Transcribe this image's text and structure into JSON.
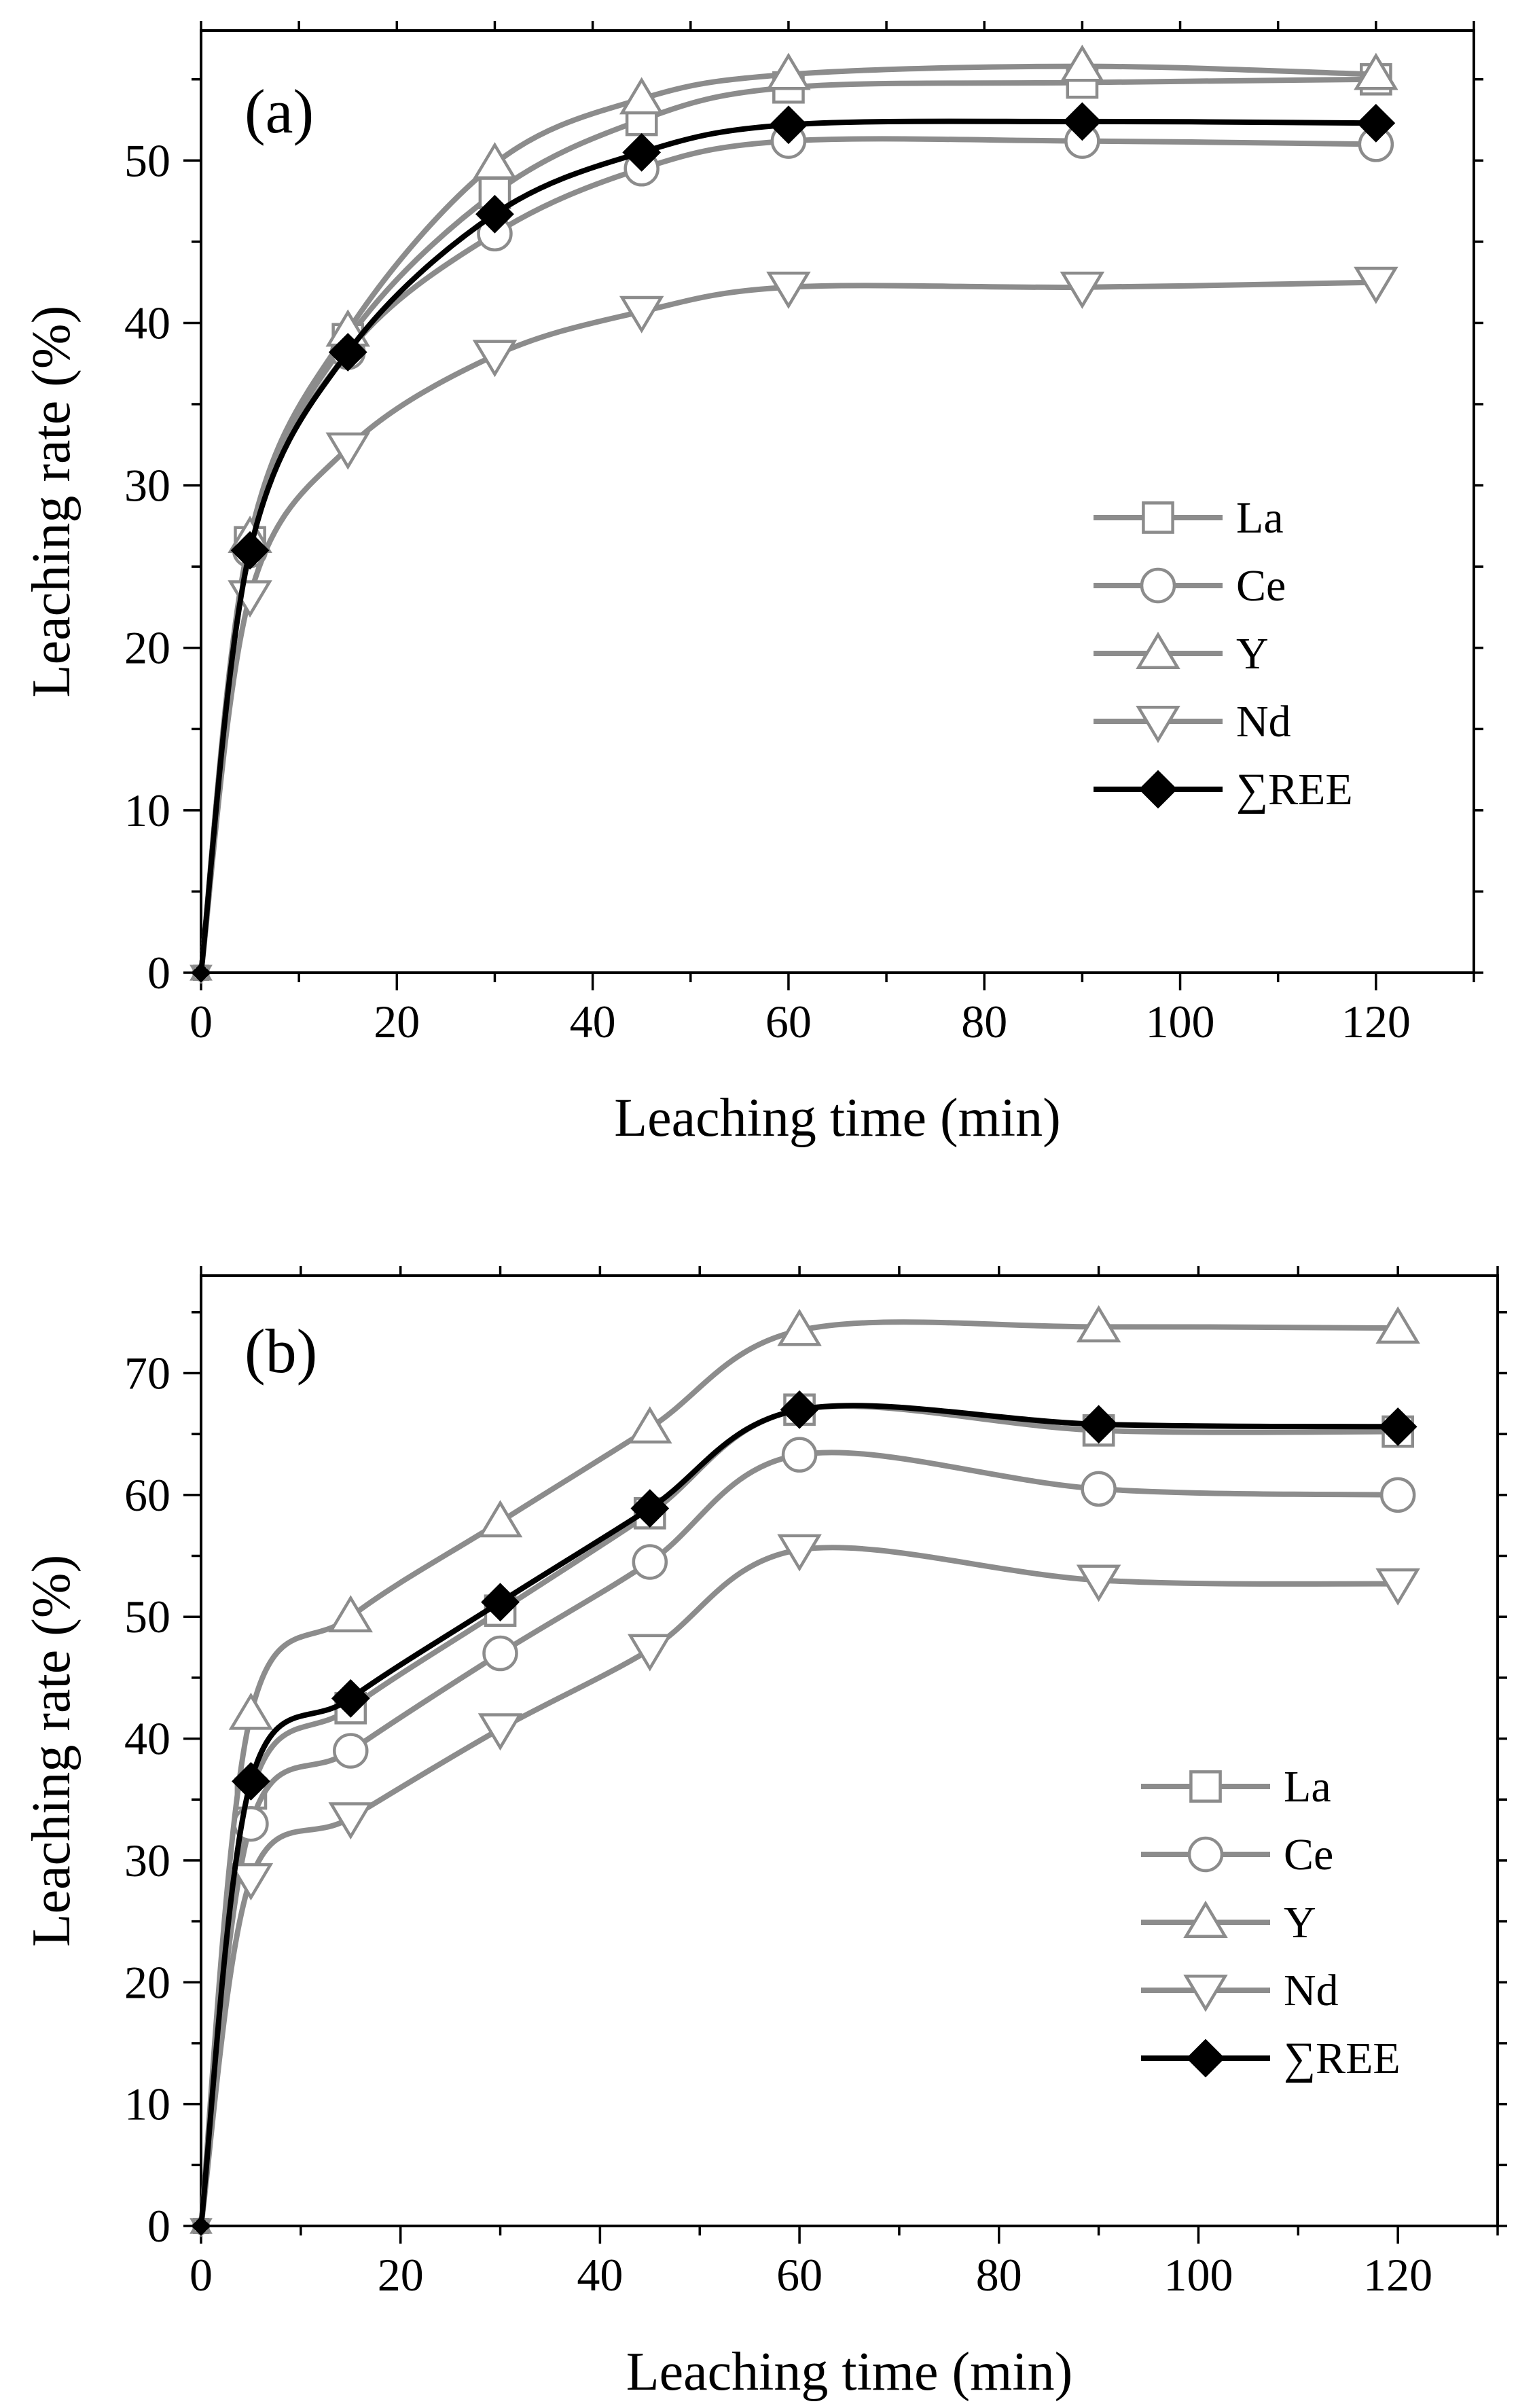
{
  "chart_data": [
    {
      "type": "line",
      "panel": "(a)",
      "xlabel": "Leaching time (min)",
      "ylabel": "Leaching rate (%)",
      "xlim": [
        0,
        130
      ],
      "ylim": [
        0,
        58
      ],
      "xticks": [
        0,
        20,
        40,
        60,
        80,
        100,
        120
      ],
      "yticks": [
        0,
        10,
        20,
        30,
        40,
        50
      ],
      "x": [
        0,
        5,
        15,
        30,
        45,
        60,
        90,
        120
      ],
      "legend_position": "right-middle",
      "series": [
        {
          "name": "La",
          "marker": "square",
          "color": "#8c8c8c",
          "values": [
            0,
            26.5,
            39,
            48,
            52.5,
            54.5,
            54.8,
            55.0
          ]
        },
        {
          "name": "Ce",
          "marker": "circle",
          "color": "#8c8c8c",
          "values": [
            0,
            26.0,
            38.2,
            45.5,
            49.5,
            51.2,
            51.2,
            51.0
          ]
        },
        {
          "name": "Y",
          "marker": "triangle-up",
          "color": "#8c8c8c",
          "values": [
            0,
            26.8,
            39.5,
            49.8,
            53.8,
            55.3,
            55.8,
            55.3
          ]
        },
        {
          "name": "Nd",
          "marker": "triangle-down",
          "color": "#8c8c8c",
          "values": [
            0,
            23.2,
            32.3,
            38.0,
            40.7,
            42.2,
            42.2,
            42.5
          ]
        },
        {
          "name": "∑REE",
          "marker": "diamond",
          "color": "#000000",
          "values": [
            0,
            26.0,
            38.2,
            46.7,
            50.5,
            52.2,
            52.4,
            52.3
          ]
        }
      ]
    },
    {
      "type": "line",
      "panel": "(b)",
      "xlabel": "Leaching time (min)",
      "ylabel": "Leaching rate (%)",
      "xlim": [
        0,
        130
      ],
      "ylim": [
        0,
        78
      ],
      "xticks": [
        0,
        20,
        40,
        60,
        80,
        100,
        120
      ],
      "yticks": [
        0,
        10,
        20,
        30,
        40,
        50,
        60,
        70
      ],
      "x": [
        0,
        5,
        15,
        30,
        45,
        60,
        90,
        120
      ],
      "legend_position": "right-middle",
      "series": [
        {
          "name": "La",
          "marker": "square",
          "color": "#8c8c8c",
          "values": [
            0,
            35.5,
            42.5,
            50.5,
            58.5,
            67.0,
            65.3,
            65.2
          ]
        },
        {
          "name": "Ce",
          "marker": "circle",
          "color": "#8c8c8c",
          "values": [
            0,
            33.0,
            39.0,
            47.0,
            54.5,
            63.3,
            60.5,
            60.0
          ]
        },
        {
          "name": "Y",
          "marker": "triangle-up",
          "color": "#8c8c8c",
          "values": [
            0,
            42.0,
            50.0,
            57.8,
            65.5,
            73.5,
            73.8,
            73.7
          ]
        },
        {
          "name": "Nd",
          "marker": "triangle-down",
          "color": "#8c8c8c",
          "values": [
            0,
            28.5,
            33.5,
            40.8,
            47.3,
            55.5,
            53.0,
            52.7
          ]
        },
        {
          "name": "∑REE",
          "marker": "diamond",
          "color": "#000000",
          "values": [
            0,
            36.5,
            43.3,
            51.2,
            58.9,
            67.0,
            65.8,
            65.6
          ]
        }
      ]
    }
  ]
}
